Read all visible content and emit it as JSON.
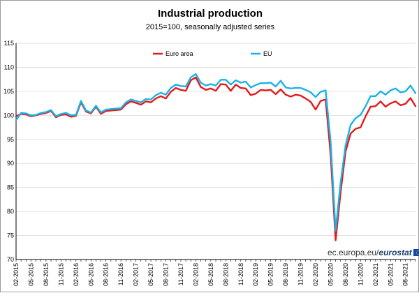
{
  "chart_data": {
    "type": "line",
    "title": "Industrial production",
    "subtitle": "2015=100, seasonally adjusted series",
    "xlabel": "",
    "ylabel": "",
    "ylim": [
      70,
      115
    ],
    "yticks": [
      70,
      75,
      80,
      85,
      90,
      95,
      100,
      105,
      110,
      115
    ],
    "x_start": "02-2015",
    "x_end": "08-2021",
    "x_tick_labels": [
      "02-2015",
      "05-2015",
      "08-2015",
      "11-2015",
      "02-2016",
      "05-2016",
      "08-2016",
      "11-2016",
      "02-2017",
      "05-2017",
      "08-2017",
      "11-2017",
      "02-2018",
      "05-2018",
      "08-2018",
      "11-2018",
      "02-2019",
      "05-2019",
      "08-2019",
      "11-2019",
      "02-2020",
      "05-2020",
      "08-2020",
      "11-2020",
      "02-2021",
      "05-2021",
      "08-2021"
    ],
    "legend": [
      "Euro area",
      "EU"
    ],
    "series": [
      {
        "name": "Euro area",
        "color": "#e41a1c",
        "values": [
          99.8,
          100.3,
          100.2,
          99.8,
          100.0,
          100.3,
          100.5,
          100.9,
          99.6,
          100.1,
          100.2,
          99.7,
          99.9,
          102.7,
          100.8,
          100.4,
          101.8,
          100.3,
          100.9,
          101.0,
          101.1,
          101.2,
          102.3,
          102.9,
          102.6,
          102.2,
          102.9,
          102.7,
          103.5,
          104.0,
          103.5,
          104.9,
          105.7,
          105.3,
          105.1,
          107.3,
          107.9,
          105.9,
          105.3,
          105.6,
          105.1,
          106.5,
          106.4,
          105.1,
          106.4,
          105.7,
          105.6,
          104.2,
          104.5,
          105.3,
          105.2,
          105.3,
          104.4,
          105.4,
          104.3,
          103.9,
          104.3,
          104.1,
          103.5,
          102.8,
          101.2,
          103.0,
          103.3,
          91.8,
          74.0,
          84.0,
          92.5,
          96.2,
          97.2,
          97.5,
          99.8,
          101.8,
          101.9,
          102.9,
          101.8,
          102.5,
          102.9,
          102.1,
          102.4,
          103.6,
          101.9
        ]
      },
      {
        "name": "EU",
        "color": "#1ab3e6",
        "values": [
          99.0,
          100.5,
          100.4,
          100.0,
          100.1,
          100.5,
          100.7,
          101.1,
          99.8,
          100.3,
          100.5,
          100.0,
          100.1,
          103.0,
          101.0,
          100.6,
          102.0,
          100.6,
          101.2,
          101.3,
          101.4,
          101.5,
          102.7,
          103.3,
          103.0,
          102.7,
          103.4,
          103.3,
          104.2,
          104.7,
          104.3,
          105.7,
          106.4,
          106.1,
          106.0,
          107.9,
          108.6,
          106.8,
          106.2,
          106.5,
          106.2,
          107.4,
          107.4,
          106.4,
          107.3,
          106.8,
          107.0,
          105.8,
          106.3,
          106.7,
          106.7,
          106.8,
          106.0,
          107.2,
          105.8,
          105.6,
          105.7,
          105.7,
          105.3,
          104.8,
          103.8,
          104.9,
          105.2,
          94.5,
          76.0,
          86.0,
          93.8,
          98.0,
          99.4,
          100.1,
          101.9,
          104.0,
          104.0,
          105.0,
          104.3,
          105.2,
          105.6,
          104.8,
          105.0,
          106.2,
          104.6
        ]
      }
    ],
    "credit_prefix": "ec.europa.eu/",
    "credit_brand": "eurostat"
  }
}
